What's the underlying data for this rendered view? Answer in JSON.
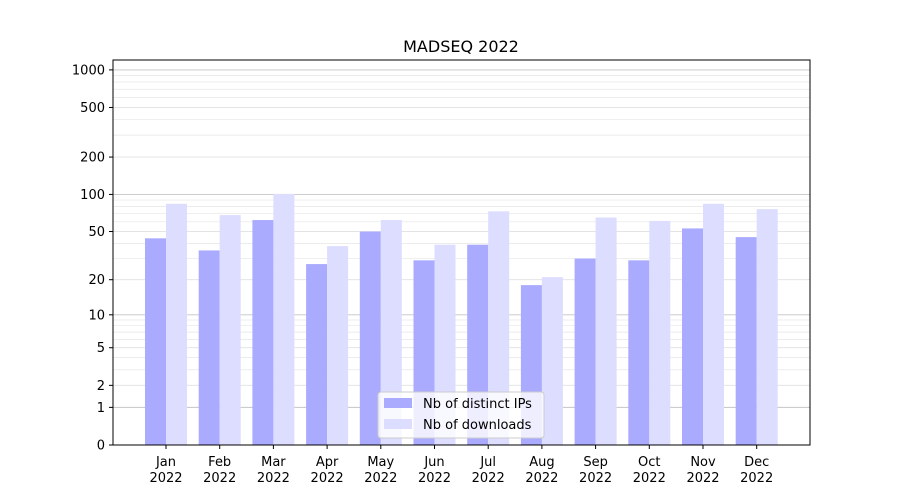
{
  "chart_data": {
    "type": "bar",
    "title": "MADSEQ 2022",
    "xlabel": "",
    "ylabel": "",
    "yscale": "log(1+y)",
    "ylim": [
      0,
      1200
    ],
    "yticks": [
      0,
      1,
      2,
      5,
      10,
      20,
      50,
      100,
      200,
      500,
      1000
    ],
    "categories": [
      "Jan\n2022",
      "Feb\n2022",
      "Mar\n2022",
      "Apr\n2022",
      "May\n2022",
      "Jun\n2022",
      "Jul\n2022",
      "Aug\n2022",
      "Sep\n2022",
      "Oct\n2022",
      "Nov\n2022",
      "Dec\n2022"
    ],
    "series": [
      {
        "name": "Nb of distinct IPs",
        "color": "#aaaaff",
        "values": [
          44,
          35,
          62,
          27,
          50,
          29,
          39,
          18,
          30,
          29,
          53,
          45
        ]
      },
      {
        "name": "Nb of downloads",
        "color": "#ddddff",
        "values": [
          84,
          68,
          101,
          38,
          62,
          39,
          73,
          21,
          65,
          61,
          84,
          76
        ]
      }
    ],
    "grid": true,
    "legend_position": "bottom-center"
  }
}
